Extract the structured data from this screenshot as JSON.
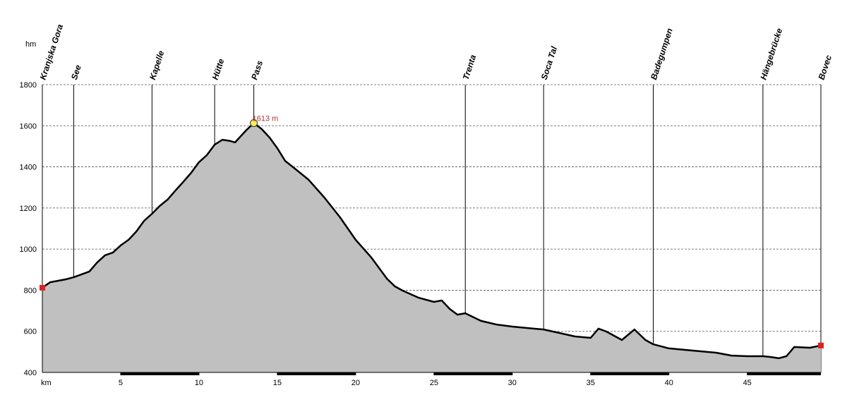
{
  "chart_data": {
    "type": "area",
    "x_label": "km",
    "y_label": "hm",
    "x": [
      0,
      0.5,
      1.5,
      2,
      3,
      3.5,
      4,
      4.5,
      5,
      5.5,
      6,
      6.5,
      7,
      7.5,
      8,
      8.5,
      9,
      9.5,
      10,
      10.5,
      11,
      11.5,
      12,
      12.3,
      13,
      13.5,
      14,
      14.5,
      15,
      15.5,
      16,
      17,
      18,
      19,
      20,
      21,
      22,
      22.5,
      23,
      24,
      25,
      25.5,
      26,
      26.5,
      27,
      28,
      29,
      30,
      31,
      32,
      33,
      34,
      35,
      35.5,
      36,
      37,
      37.8,
      38.5,
      39,
      40,
      42,
      43,
      44,
      45,
      46,
      46.5,
      47,
      47.5,
      48,
      49,
      49.7
    ],
    "values": [
      812,
      839,
      853,
      863,
      891,
      935,
      970,
      983,
      1018,
      1045,
      1086,
      1138,
      1172,
      1210,
      1241,
      1285,
      1327,
      1371,
      1423,
      1457,
      1508,
      1532,
      1526,
      1519,
      1577,
      1613,
      1584,
      1543,
      1491,
      1429,
      1399,
      1337,
      1251,
      1155,
      1045,
      959,
      856,
      819,
      798,
      764,
      743,
      750,
      709,
      681,
      688,
      651,
      633,
      623,
      616,
      609,
      592,
      575,
      568,
      613,
      599,
      558,
      609,
      558,
      537,
      517,
      503,
      496,
      482,
      479,
      479,
      475,
      469,
      479,
      524,
      520,
      531
    ],
    "color": "#c0c0c0",
    "line_color": "#000000",
    "xlim": [
      0,
      49.7
    ],
    "ylim": [
      400,
      1800
    ],
    "xticks": [
      5,
      10,
      15,
      20,
      25,
      30,
      35,
      40,
      45
    ],
    "yticks": [
      400,
      600,
      800,
      1000,
      1200,
      1400,
      1600,
      1800
    ],
    "grid": true,
    "waypoints": [
      {
        "name": "Kranjska Gora",
        "km": 0
      },
      {
        "name": "See",
        "km": 2
      },
      {
        "name": "Kapelle",
        "km": 7
      },
      {
        "name": "Hütte",
        "km": 11
      },
      {
        "name": "Pass",
        "km": 13.5
      },
      {
        "name": "Trenta",
        "km": 27
      },
      {
        "name": "Soca Tal",
        "km": 32
      },
      {
        "name": "Badegumpen",
        "km": 39
      },
      {
        "name": "Hängebrücke",
        "km": 46
      },
      {
        "name": "Bovec",
        "km": 49.7
      }
    ],
    "annotation": {
      "text": "1613 m",
      "x": 13.5,
      "y": 1613,
      "color": "#b03030"
    }
  }
}
